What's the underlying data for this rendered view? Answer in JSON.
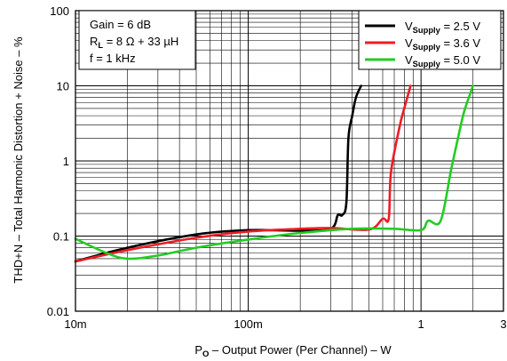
{
  "chart_data": {
    "type": "line",
    "title": "",
    "xlabel": {
      "prefix": "P",
      "sub": "O",
      "rest": " – Output Power (Per Channel) – W"
    },
    "ylabel": "THD+N – Total Harmonic Distortion + Noise – %",
    "x_scale": "log",
    "y_scale": "log",
    "xlim": [
      0.01,
      3
    ],
    "ylim": [
      0.01,
      100
    ],
    "x_ticks": [
      {
        "value": 0.01,
        "label": "10m"
      },
      {
        "value": 0.1,
        "label": "100m"
      },
      {
        "value": 1,
        "label": "1"
      },
      {
        "value": 3,
        "label": "3"
      }
    ],
    "y_ticks": [
      {
        "value": 0.01,
        "label": "0.01"
      },
      {
        "value": 0.1,
        "label": "0.1"
      },
      {
        "value": 1,
        "label": "1"
      },
      {
        "value": 10,
        "label": "10"
      },
      {
        "value": 100,
        "label": "100"
      }
    ],
    "grid": true,
    "annotations": [
      {
        "pre": "Gain = 6 dB",
        "sub": "",
        "post": ""
      },
      {
        "pre": "R",
        "sub": "L",
        "post": " = 8 Ω + 33 µH"
      },
      {
        "pre": "f = 1 kHz",
        "sub": "",
        "post": ""
      }
    ],
    "legend_position": "top-right",
    "series": [
      {
        "name": {
          "pre": "V",
          "sub": "Supply",
          "post": " = 2.5 V"
        },
        "color": "#000000",
        "x": [
          0.01,
          0.02,
          0.05,
          0.1,
          0.2,
          0.3,
          0.33,
          0.35,
          0.37,
          0.38,
          0.4,
          0.42,
          0.45
        ],
        "y": [
          0.046,
          0.07,
          0.105,
          0.12,
          0.118,
          0.125,
          0.19,
          0.19,
          0.28,
          2.0,
          4.0,
          7.0,
          10.0
        ]
      },
      {
        "name": {
          "pre": "V",
          "sub": "Supply",
          "post": " = 3.6 V"
        },
        "color": "#ee1c25",
        "x": [
          0.01,
          0.02,
          0.05,
          0.1,
          0.2,
          0.3,
          0.5,
          0.6,
          0.65,
          0.67,
          0.75,
          0.8,
          0.87
        ],
        "y": [
          0.046,
          0.065,
          0.095,
          0.115,
          0.125,
          0.128,
          0.122,
          0.17,
          0.17,
          0.7,
          2.8,
          5.0,
          10.0
        ]
      },
      {
        "name": {
          "pre": "V",
          "sub": "Supply",
          "post": " = 5.0 V"
        },
        "color": "#22cc22",
        "x": [
          0.01,
          0.015,
          0.02,
          0.03,
          0.05,
          0.1,
          0.2,
          0.4,
          0.7,
          1.0,
          1.1,
          1.3,
          1.5,
          1.7,
          1.8,
          2.0
        ],
        "y": [
          0.092,
          0.06,
          0.05,
          0.055,
          0.07,
          0.09,
          0.11,
          0.125,
          0.125,
          0.12,
          0.16,
          0.16,
          0.8,
          3.0,
          5.0,
          10.0
        ]
      }
    ]
  }
}
